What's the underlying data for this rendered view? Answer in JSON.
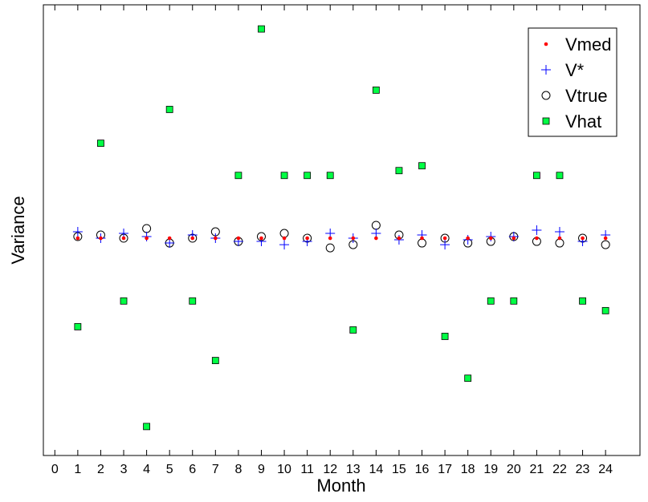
{
  "chart_data": {
    "type": "scatter",
    "title": "",
    "xlabel": "Month",
    "ylabel": "Variance",
    "xlim": [
      -0.5,
      25.5
    ],
    "ylim": [
      -1.35,
      1.45
    ],
    "x_ticks": [
      "0",
      "1",
      "2",
      "3",
      "4",
      "5",
      "6",
      "7",
      "8",
      "9",
      "10",
      "11",
      "12",
      "13",
      "14",
      "15",
      "16",
      "17",
      "18",
      "19",
      "20",
      "21",
      "22",
      "23",
      "24"
    ],
    "y_ticks": [],
    "grid": false,
    "legend_position": "top-right",
    "x": [
      1,
      2,
      3,
      4,
      5,
      6,
      7,
      8,
      9,
      10,
      11,
      12,
      13,
      14,
      15,
      16,
      17,
      18,
      19,
      20,
      21,
      22,
      23,
      24
    ],
    "series": [
      {
        "name": "Vmed",
        "marker": "dot",
        "color": "#ff0000",
        "values": [
          0.0,
          0.0,
          0.0,
          0.0,
          0.0,
          0.0,
          0.0,
          0.0,
          0.0,
          0.0,
          0.0,
          0.0,
          0.0,
          0.0,
          0.0,
          0.0,
          0.0,
          0.0,
          0.0,
          0.0,
          0.0,
          0.0,
          0.0,
          0.0
        ]
      },
      {
        "name": "V*",
        "marker": "plus",
        "color": "#0000ff",
        "values": [
          0.04,
          0.0,
          0.03,
          0.01,
          -0.03,
          0.02,
          0.0,
          -0.02,
          -0.02,
          -0.04,
          -0.02,
          0.03,
          0.0,
          0.03,
          -0.01,
          0.02,
          -0.04,
          -0.01,
          0.01,
          0.01,
          0.05,
          0.04,
          -0.02,
          0.02
        ]
      },
      {
        "name": "Vtrue",
        "marker": "circle",
        "color": "#000000",
        "values": [
          0.01,
          0.02,
          0.0,
          0.06,
          -0.03,
          0.0,
          0.04,
          -0.02,
          0.01,
          0.03,
          0.0,
          -0.06,
          -0.04,
          0.08,
          0.02,
          -0.03,
          0.0,
          -0.03,
          -0.02,
          0.01,
          -0.02,
          -0.03,
          0.0,
          -0.04
        ]
      },
      {
        "name": "Vhat",
        "marker": "square",
        "color": "#00ff44",
        "values": [
          -0.55,
          0.59,
          -0.39,
          -1.17,
          0.8,
          -0.39,
          -0.76,
          0.39,
          1.3,
          0.39,
          0.39,
          0.39,
          -0.57,
          0.92,
          0.42,
          0.45,
          -0.61,
          -0.87,
          -0.39,
          -0.39,
          0.39,
          0.39,
          -0.39,
          -0.45
        ]
      }
    ]
  }
}
